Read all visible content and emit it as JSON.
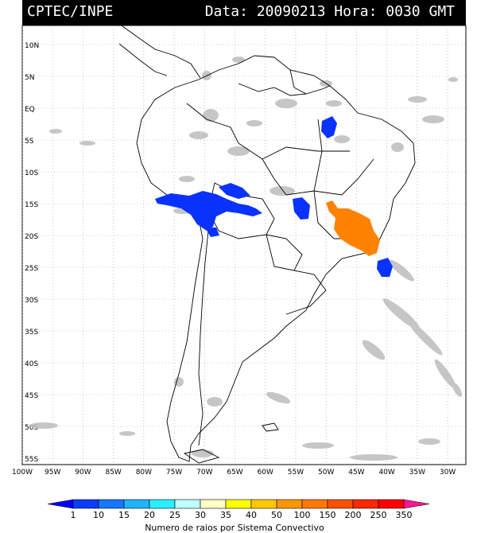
{
  "header": {
    "source": "CPTEC/INPE",
    "datetime": "Data: 20090213 Hora: 0030 GMT"
  },
  "map": {
    "lat_labels": [
      "10N",
      "5N",
      "EQ",
      "5S",
      "10S",
      "15S",
      "20S",
      "25S",
      "30S",
      "35S",
      "40S",
      "45S",
      "50S",
      "55S"
    ],
    "lon_labels": [
      "100W",
      "95W",
      "90W",
      "85W",
      "80W",
      "75W",
      "70W",
      "65W",
      "60W",
      "55W",
      "50W",
      "45W",
      "40W",
      "35W",
      "30W"
    ],
    "extent": {
      "lon_min": -100,
      "lon_max": -27,
      "lat_min": -56,
      "lat_max": 13
    },
    "grid": true
  },
  "legend": {
    "ticks": [
      "1",
      "10",
      "15",
      "20",
      "25",
      "30",
      "35",
      "40",
      "50",
      "100",
      "150",
      "200",
      "250",
      "350"
    ],
    "title": "Numero de raios por Sistema Convectivo",
    "colors": [
      "#0000ff",
      "#0a3cff",
      "#1478ff",
      "#1eb4ff",
      "#28f0ff",
      "#bfffff",
      "#ffffc8",
      "#ffff00",
      "#ffc800",
      "#ff9600",
      "#ff7800",
      "#ff5000",
      "#ff2800",
      "#ff0000",
      "#ff1493"
    ]
  },
  "colors": {
    "gray_cloud": "#bdbdbd",
    "blue_cluster": "#0a32ff",
    "orange_cluster": "#ff8200"
  }
}
